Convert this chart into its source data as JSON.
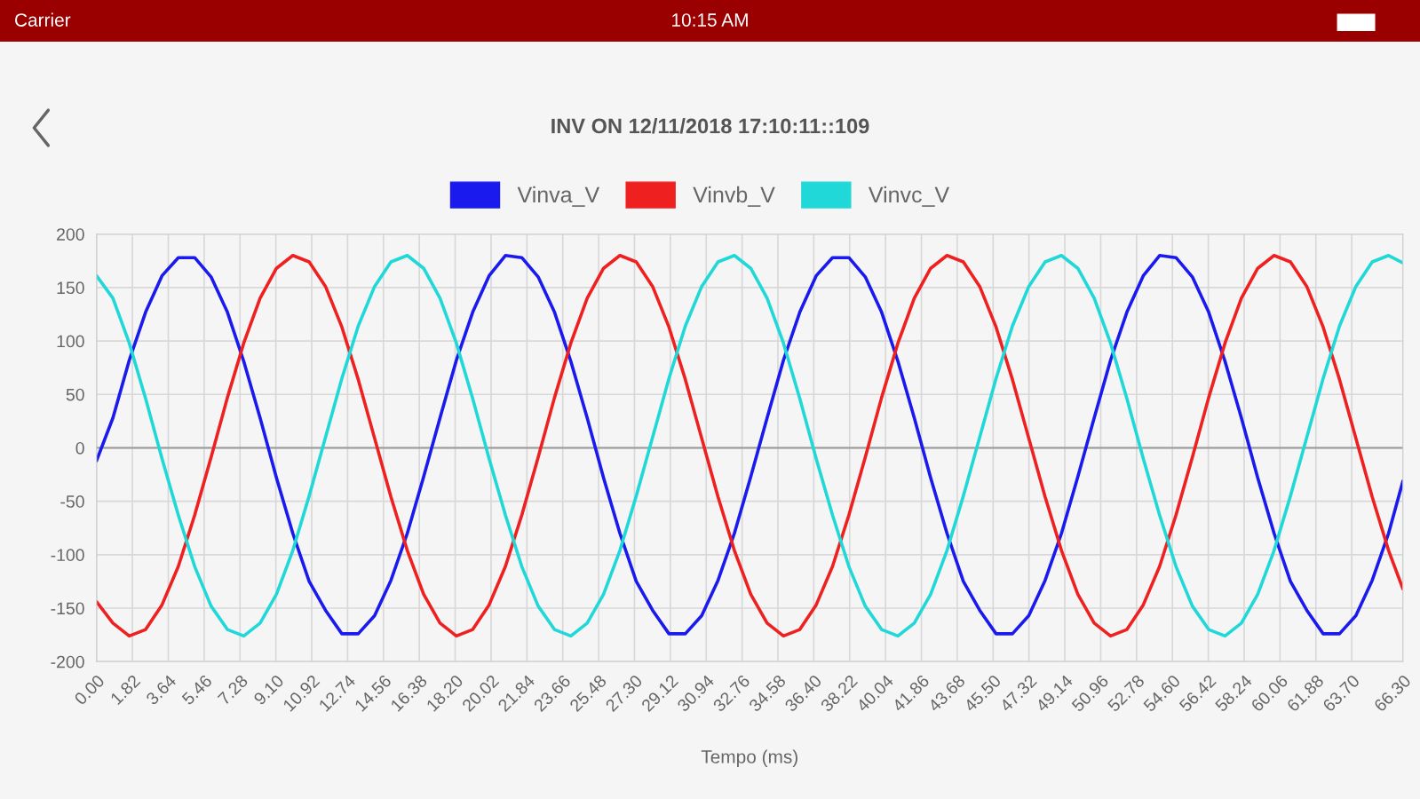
{
  "chart_data": {
    "type": "line",
    "title": "INV ON 12/11/2018 17:10:11::109",
    "xlabel": "Tempo (ms)",
    "annotations": [
      "Carrier",
      "10:15 AM"
    ],
    "x": [
      0,
      0.83,
      1.66,
      2.49,
      3.32,
      4.15,
      4.98,
      5.81,
      6.64,
      7.47,
      8.3,
      9.13,
      9.96,
      10.79,
      11.62,
      12.45,
      13.28,
      14.11,
      14.94,
      15.77,
      16.6,
      17.43,
      18.26,
      19.09,
      19.92,
      20.75,
      21.58,
      22.41,
      23.24,
      24.07,
      24.9,
      25.73,
      26.56,
      27.39,
      28.22,
      29.05,
      29.88,
      30.71,
      31.54,
      32.37,
      33.2,
      34.03,
      34.86,
      35.69,
      36.52,
      37.35,
      38.18,
      39.01,
      39.84,
      40.67,
      41.5,
      42.33,
      43.16,
      43.99,
      44.82,
      45.65,
      46.48,
      47.31,
      48.14,
      48.97,
      49.8,
      50.63,
      51.46,
      52.29,
      53.12,
      53.95,
      54.78,
      55.61,
      56.44,
      57.27,
      58.1,
      58.93,
      59.76,
      60.59,
      61.42,
      62.25,
      63.08,
      63.91,
      64.74,
      65.57,
      66.3
    ],
    "series": [
      {
        "name": "Vinva_V",
        "color": "#1a1aee",
        "values": [
          -12,
          28,
          82,
          127,
          161,
          178,
          178,
          160,
          127,
          81,
          28,
          -28,
          -80,
          -125,
          -152,
          -174,
          -174,
          -157,
          -124,
          -80,
          -27,
          28,
          82,
          127,
          161,
          180,
          178,
          160,
          127,
          81,
          28,
          -28,
          -80,
          -125,
          -152,
          -174,
          -174,
          -157,
          -124,
          -80,
          -27,
          28,
          82,
          127,
          161,
          178,
          178,
          160,
          127,
          81,
          28,
          -28,
          -80,
          -125,
          -152,
          -174,
          -174,
          -157,
          -124,
          -80,
          -27,
          28,
          82,
          127,
          161,
          180,
          178,
          160,
          127,
          81,
          28,
          -28,
          -80,
          -125,
          -152,
          -174,
          -174,
          -157,
          -124,
          -80,
          -31
        ]
      },
      {
        "name": "Vinvb_V",
        "color": "#ee2020",
        "values": [
          -144,
          -164,
          -176,
          -170,
          -147,
          -111,
          -63,
          -9,
          47,
          98,
          140,
          168,
          180,
          174,
          151,
          113,
          64,
          9,
          -46,
          -96,
          -137,
          -164,
          -176,
          -170,
          -147,
          -111,
          -63,
          -9,
          47,
          98,
          140,
          168,
          180,
          174,
          151,
          113,
          64,
          9,
          -46,
          -96,
          -137,
          -164,
          -176,
          -170,
          -147,
          -111,
          -63,
          -9,
          47,
          98,
          140,
          168,
          180,
          174,
          151,
          113,
          64,
          9,
          -46,
          -96,
          -137,
          -164,
          -176,
          -170,
          -147,
          -111,
          -63,
          -9,
          47,
          98,
          140,
          168,
          180,
          174,
          151,
          113,
          64,
          9,
          -46,
          -96,
          -132
        ]
      },
      {
        "name": "Vinvc_V",
        "color": "#20d8d8",
        "values": [
          161,
          140,
          98,
          46,
          -10,
          -63,
          -111,
          -148,
          -170,
          -176,
          -164,
          -137,
          -96,
          -45,
          10,
          65,
          114,
          151,
          174,
          180,
          168,
          140,
          98,
          46,
          -10,
          -63,
          -111,
          -148,
          -170,
          -176,
          -164,
          -137,
          -96,
          -45,
          10,
          65,
          114,
          151,
          174,
          180,
          168,
          140,
          98,
          46,
          -10,
          -63,
          -111,
          -148,
          -170,
          -176,
          -164,
          -137,
          -96,
          -45,
          10,
          65,
          114,
          151,
          174,
          180,
          168,
          140,
          98,
          46,
          -10,
          -63,
          -111,
          -148,
          -170,
          -176,
          -164,
          -137,
          -96,
          -45,
          10,
          65,
          114,
          151,
          174,
          180,
          173
        ]
      }
    ],
    "xlim": [
      0,
      66.3
    ],
    "xticks": [
      {
        "value": 0,
        "label": "0.00"
      },
      {
        "value": 1.82,
        "label": "1.82"
      },
      {
        "value": 3.64,
        "label": "3.64"
      },
      {
        "value": 5.46,
        "label": "5.46"
      },
      {
        "value": 7.28,
        "label": "7.28"
      },
      {
        "value": 9.1,
        "label": "9.10"
      },
      {
        "value": 10.92,
        "label": "10.92"
      },
      {
        "value": 12.74,
        "label": "12.74"
      },
      {
        "value": 14.56,
        "label": "14.56"
      },
      {
        "value": 16.38,
        "label": "16.38"
      },
      {
        "value": 18.2,
        "label": "18.20"
      },
      {
        "value": 20.02,
        "label": "20.02"
      },
      {
        "value": 21.84,
        "label": "21.84"
      },
      {
        "value": 23.66,
        "label": "23.66"
      },
      {
        "value": 25.48,
        "label": "25.48"
      },
      {
        "value": 27.3,
        "label": "27.30"
      },
      {
        "value": 29.12,
        "label": "29.12"
      },
      {
        "value": 30.94,
        "label": "30.94"
      },
      {
        "value": 32.76,
        "label": "32.76"
      },
      {
        "value": 34.58,
        "label": "34.58"
      },
      {
        "value": 36.4,
        "label": "36.40"
      },
      {
        "value": 38.22,
        "label": "38.22"
      },
      {
        "value": 40.04,
        "label": "40.04"
      },
      {
        "value": 41.86,
        "label": "41.86"
      },
      {
        "value": 43.68,
        "label": "43.68"
      },
      {
        "value": 45.5,
        "label": "45.50"
      },
      {
        "value": 47.32,
        "label": "47.32"
      },
      {
        "value": 49.14,
        "label": "49.14"
      },
      {
        "value": 50.96,
        "label": "50.96"
      },
      {
        "value": 52.78,
        "label": "52.78"
      },
      {
        "value": 54.6,
        "label": "54.60"
      },
      {
        "value": 56.42,
        "label": "56.42"
      },
      {
        "value": 58.24,
        "label": "58.24"
      },
      {
        "value": 60.06,
        "label": "60.06"
      },
      {
        "value": 61.88,
        "label": "61.88"
      },
      {
        "value": 63.7,
        "label": "63.70"
      },
      {
        "value": 66.3,
        "label": "66.30"
      }
    ],
    "ylim": [
      -200,
      200
    ],
    "yticks": [
      -200,
      -150,
      -100,
      -50,
      0,
      50,
      100,
      150,
      200
    ],
    "grid": true,
    "legend": "top",
    "marker": "none",
    "line_style": "solid"
  }
}
